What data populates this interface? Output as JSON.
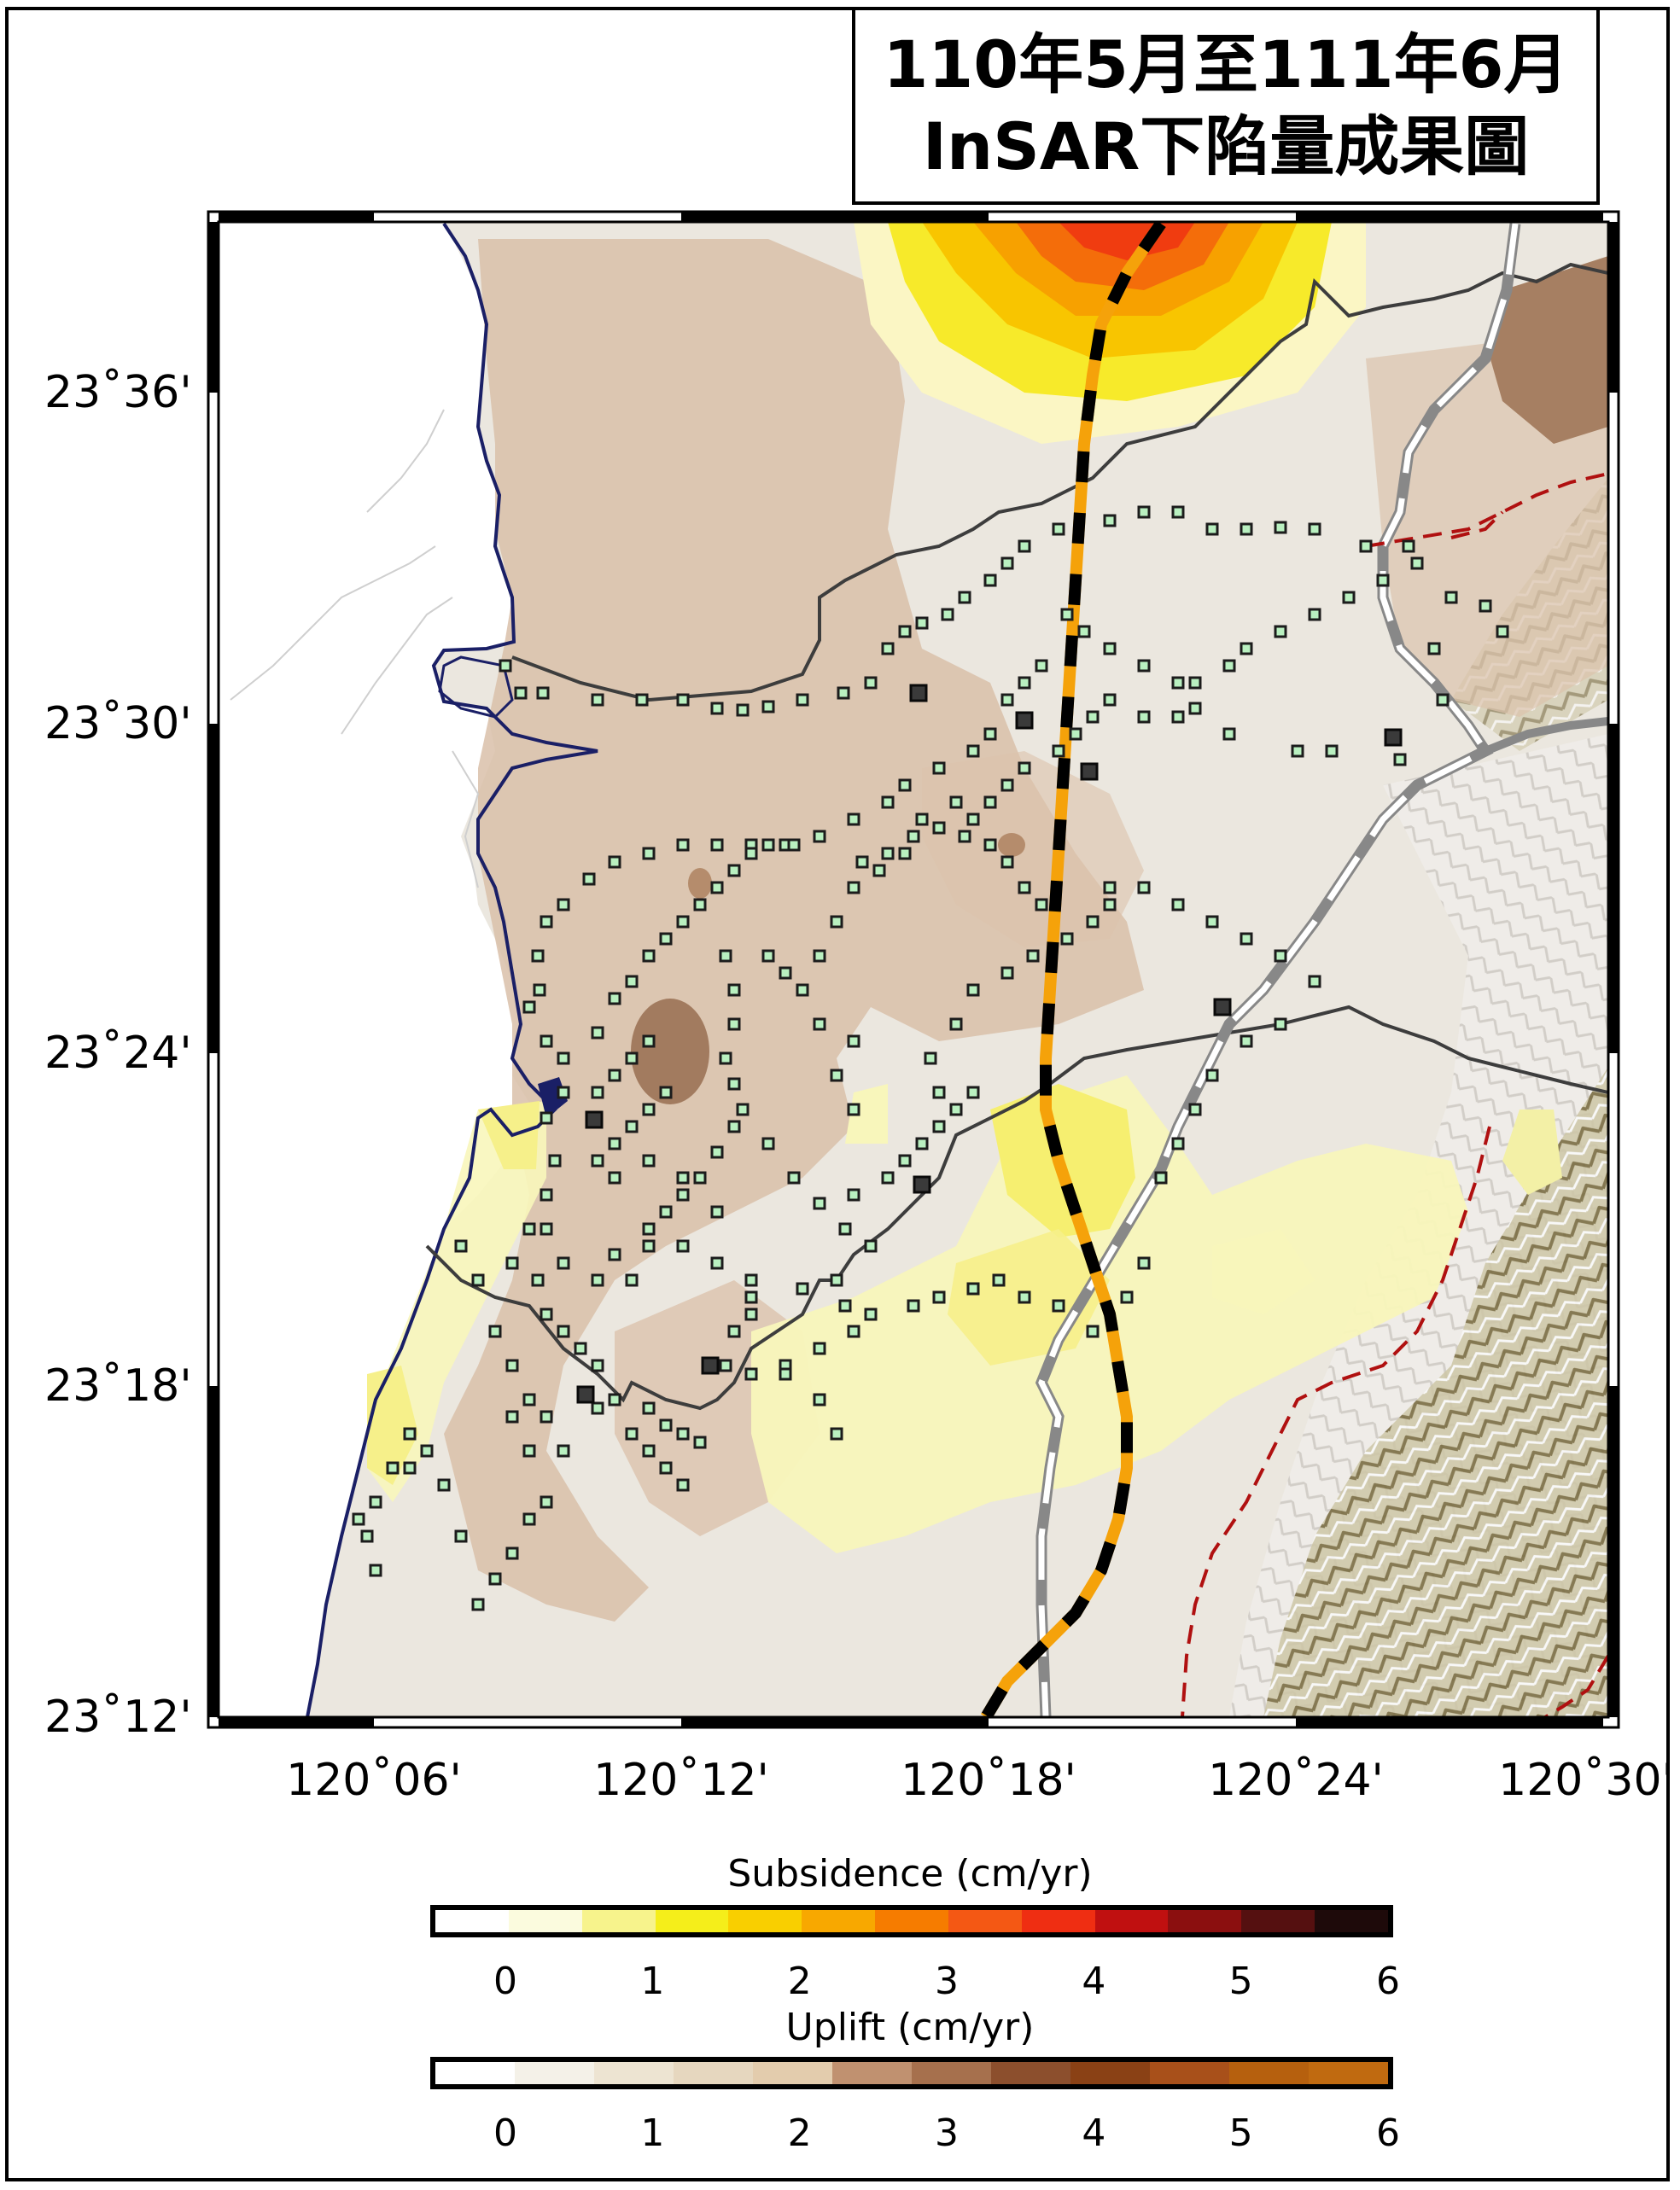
{
  "title": {
    "line1": "110年5月至111年6月",
    "line2": "InSAR下陷量成果圖"
  },
  "map": {
    "lat_labels": [
      "23˚36'",
      "23˚30'",
      "23˚24'",
      "23˚18'",
      "23˚12'"
    ],
    "lon_labels": [
      "120˚06'",
      "120˚12'",
      "120˚18'",
      "120˚24'",
      "120˚30'"
    ],
    "extent": {
      "lon": [
        "120°04'",
        "120°31'"
      ],
      "lat": [
        "23°12'",
        "23°39'"
      ]
    },
    "colors": {
      "sea": "#ffffff",
      "land_base": "#ece7de",
      "uplift": "#d9bfa6",
      "uplift_strong": "#a27b5e",
      "subsidence_low": "#f7f5b0",
      "subsidence_mid": "#f4e800",
      "subsidence_high": "#f05a14",
      "coastline": "#1a1f66",
      "county_border": "#3a3a3a",
      "hsr_track_a": "#000000",
      "hsr_track_b": "#f5a20a",
      "fault": "#b01010",
      "station_fill": "#b9f0c0",
      "station_stroke": "#1c1c1c",
      "mountain": "#6e5f2e"
    },
    "icons": [
      "leveling-station-icon",
      "high-speed-rail-line",
      "railway-line",
      "fault-line",
      "county-border"
    ]
  },
  "legends": [
    {
      "title": "Subsidence (cm/yr)",
      "ticks": [
        "0",
        "1",
        "2",
        "3",
        "4",
        "5",
        "6"
      ],
      "values": [
        0,
        1,
        2,
        3,
        4,
        5,
        6
      ],
      "colors": [
        "#ffffff",
        "#fbfbde",
        "#f7f38c",
        "#f5ee1a",
        "#f9cf00",
        "#f8a800",
        "#f67c00",
        "#f45814",
        "#ef2e12",
        "#c01010",
        "#8b0f0f",
        "#551010",
        "#1e0a0a"
      ]
    },
    {
      "title": "Uplift (cm/yr)",
      "ticks": [
        "0",
        "1",
        "2",
        "3",
        "4",
        "5",
        "6"
      ],
      "values": [
        0,
        1,
        2,
        3,
        4,
        5,
        6
      ],
      "colors": [
        "#ffffff",
        "#f4f1e8",
        "#ede4d2",
        "#e6d7bf",
        "#e3ccad",
        "#c09170",
        "#a6704d",
        "#8c4f2d",
        "#8a4115",
        "#a8501a",
        "#b6600e",
        "#c06a10"
      ]
    }
  ]
}
